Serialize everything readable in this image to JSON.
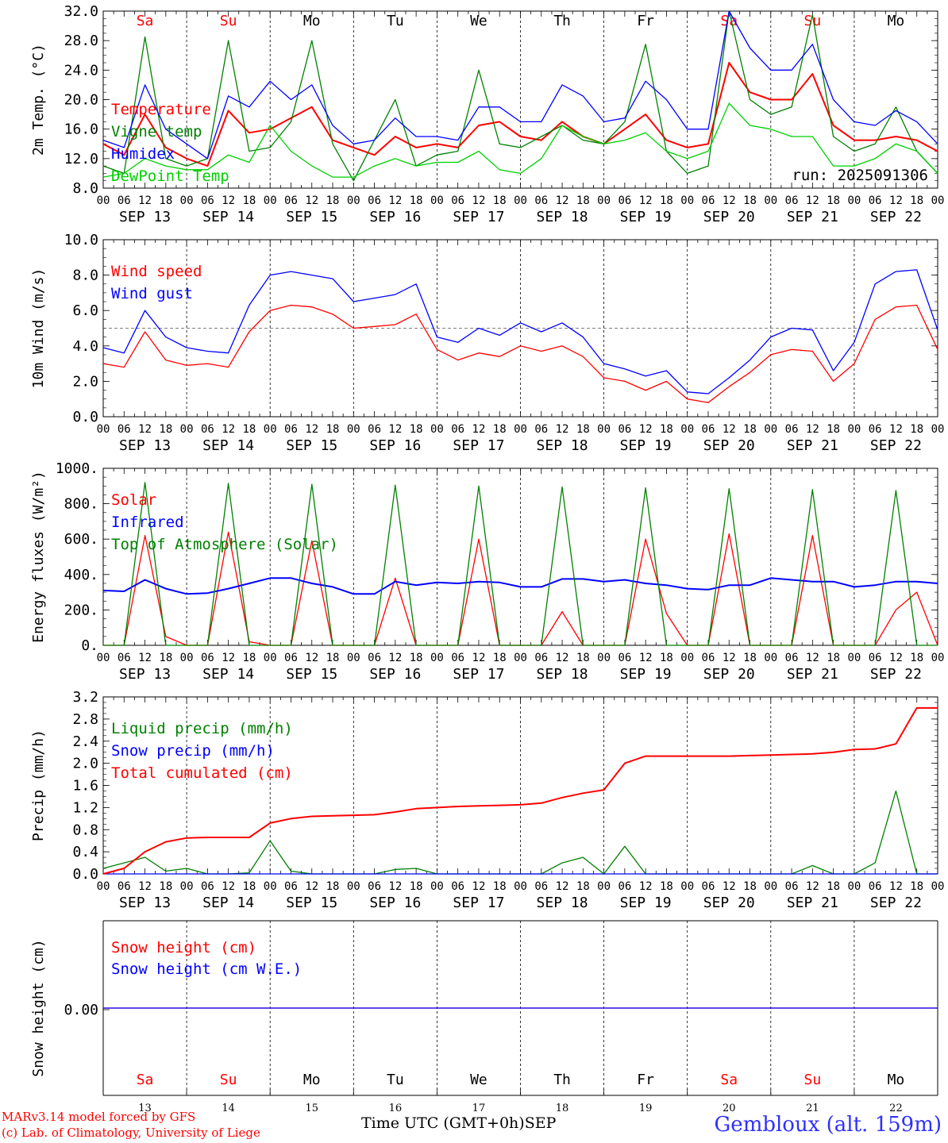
{
  "chart_data": [
    {
      "type": "line",
      "ylabel": "2m Temp. (°C)",
      "ylim": [
        8,
        32
      ],
      "yticks": [
        "8.0",
        "12.0",
        "16.0",
        "20.0",
        "24.0",
        "28.0",
        "32.0"
      ],
      "run_label": "run: 2025091306",
      "x_hours": [
        0,
        6,
        12,
        18,
        24,
        30,
        36,
        42,
        48,
        54,
        60,
        66,
        72,
        78,
        84,
        90,
        96,
        102,
        108,
        114,
        120,
        126,
        132,
        138,
        144,
        150,
        156,
        162,
        168,
        174,
        180,
        186,
        192,
        198,
        204,
        210,
        216,
        222,
        228,
        234,
        240
      ],
      "series": [
        {
          "name": "Temperature",
          "color": "#ff0000",
          "values": [
            14,
            12.5,
            18,
            13.5,
            12,
            11,
            18.5,
            15.5,
            16,
            17.5,
            19,
            14.5,
            13.5,
            12.5,
            15,
            13.5,
            14,
            13.5,
            16.5,
            17,
            15,
            14.5,
            17,
            15,
            14,
            16,
            18,
            14.5,
            13.5,
            14,
            25,
            21,
            20,
            20,
            23.5,
            16.5,
            14.5,
            14.5,
            15,
            14.5,
            13
          ]
        },
        {
          "name": "Vigne temp",
          "color": "#008000",
          "values": [
            11,
            10,
            28.5,
            12,
            11,
            12,
            28,
            13,
            13.5,
            17,
            28,
            14,
            9,
            14.5,
            20,
            11,
            12.5,
            13,
            24,
            14,
            13.5,
            15,
            16.5,
            14.5,
            14,
            17,
            27.5,
            13,
            10,
            11,
            32,
            20,
            18,
            19,
            31.5,
            15,
            13,
            14,
            19,
            13,
            10
          ]
        },
        {
          "name": "Humidex",
          "color": "#0000ff",
          "values": [
            14.5,
            13.5,
            22,
            16,
            14,
            12,
            20.5,
            19,
            22.5,
            20,
            22,
            16.5,
            14,
            14.5,
            17.5,
            15,
            15,
            14.5,
            19,
            19,
            17,
            17,
            22,
            20.5,
            17,
            17.5,
            22.5,
            20,
            16,
            16,
            32,
            27,
            24,
            24,
            27.5,
            20,
            17,
            16.5,
            18.5,
            17,
            14
          ]
        },
        {
          "name": "DewPoint Temp",
          "color": "#00d000",
          "values": [
            9.5,
            10,
            12,
            11,
            10.5,
            10.5,
            12.5,
            11.5,
            16.5,
            13,
            11,
            9.5,
            9.5,
            11,
            12,
            11,
            11.5,
            11.5,
            13,
            10.5,
            10,
            12,
            16.5,
            15,
            14,
            14.5,
            15.5,
            13,
            12,
            13,
            19.5,
            16.5,
            16,
            15,
            15,
            11,
            11,
            12,
            14,
            13,
            10
          ]
        }
      ]
    },
    {
      "type": "line",
      "ylabel": "10m Wind (m/s)",
      "ylim": [
        0,
        10
      ],
      "yticks": [
        "0.0",
        "2.0",
        "4.0",
        "6.0",
        "8.0",
        "10.0"
      ],
      "reference_line": 5.0,
      "x_hours": [
        0,
        6,
        12,
        18,
        24,
        30,
        36,
        42,
        48,
        54,
        60,
        66,
        72,
        78,
        84,
        90,
        96,
        102,
        108,
        114,
        120,
        126,
        132,
        138,
        144,
        150,
        156,
        162,
        168,
        174,
        180,
        186,
        192,
        198,
        204,
        210,
        216,
        222,
        228,
        234,
        240
      ],
      "series": [
        {
          "name": "Wind speed",
          "color": "#ff0000",
          "values": [
            3,
            2.8,
            4.8,
            3.2,
            2.9,
            3,
            2.8,
            4.8,
            6,
            6.3,
            6.2,
            5.8,
            5,
            5.1,
            5.2,
            5.8,
            3.8,
            3.2,
            3.6,
            3.4,
            4,
            3.7,
            4,
            3.4,
            2.2,
            2,
            1.5,
            2,
            1,
            0.8,
            1.7,
            2.5,
            3.5,
            3.8,
            3.7,
            2,
            3,
            5.5,
            6.2,
            6.3,
            3.8
          ]
        },
        {
          "name": "Wind gust",
          "color": "#0000ff",
          "values": [
            3.9,
            3.6,
            6,
            4.5,
            3.9,
            3.7,
            3.6,
            6.3,
            8,
            8.2,
            8,
            7.8,
            6.5,
            6.7,
            6.9,
            7.5,
            4.5,
            4.2,
            5,
            4.6,
            5.3,
            4.8,
            5.3,
            4.5,
            3,
            2.7,
            2.3,
            2.6,
            1.4,
            1.3,
            2.2,
            3.2,
            4.5,
            5,
            4.9,
            2.6,
            4.2,
            7.5,
            8.2,
            8.3,
            4.9
          ]
        }
      ]
    },
    {
      "type": "line",
      "ylabel": "Energy fluxes (W/m²)",
      "ylim": [
        0,
        1000
      ],
      "yticks": [
        "0.",
        "200.",
        "400.",
        "600.",
        "800.",
        "1000."
      ],
      "x_hours": [
        0,
        6,
        12,
        18,
        24,
        30,
        36,
        42,
        48,
        54,
        60,
        66,
        72,
        78,
        84,
        90,
        96,
        102,
        108,
        114,
        120,
        126,
        132,
        138,
        144,
        150,
        156,
        162,
        168,
        174,
        180,
        186,
        192,
        198,
        204,
        210,
        216,
        222,
        228,
        234,
        240
      ],
      "series": [
        {
          "name": "Solar",
          "color": "#ff0000",
          "values": [
            0,
            0,
            620,
            50,
            0,
            0,
            640,
            20,
            0,
            0,
            590,
            0,
            0,
            0,
            380,
            0,
            0,
            0,
            600,
            0,
            0,
            0,
            190,
            0,
            0,
            0,
            600,
            180,
            0,
            0,
            630,
            0,
            0,
            0,
            620,
            0,
            0,
            0,
            200,
            300,
            0
          ]
        },
        {
          "name": "Infrared",
          "color": "#0000ff",
          "values": [
            310,
            305,
            370,
            320,
            290,
            295,
            320,
            350,
            380,
            380,
            350,
            330,
            290,
            290,
            360,
            340,
            355,
            350,
            360,
            355,
            330,
            330,
            375,
            375,
            360,
            370,
            350,
            340,
            320,
            315,
            340,
            340,
            380,
            370,
            360,
            360,
            330,
            340,
            360,
            360,
            350
          ]
        },
        {
          "name": "Top of Atmosphere (Solar)",
          "color": "#008000",
          "values": [
            0,
            0,
            920,
            0,
            0,
            0,
            915,
            0,
            0,
            0,
            910,
            0,
            0,
            0,
            905,
            0,
            0,
            0,
            900,
            0,
            0,
            0,
            895,
            0,
            0,
            0,
            890,
            0,
            0,
            0,
            885,
            0,
            0,
            0,
            880,
            0,
            0,
            0,
            875,
            0,
            0
          ]
        }
      ]
    },
    {
      "type": "line",
      "ylabel": "Precip (mm/h)",
      "ylim": [
        0,
        3.2
      ],
      "yticks": [
        "0.0",
        "0.4",
        "0.8",
        "1.2",
        "1.6",
        "2.0",
        "2.4",
        "2.8",
        "3.2"
      ],
      "x_hours": [
        0,
        6,
        12,
        18,
        24,
        30,
        36,
        42,
        48,
        54,
        60,
        66,
        72,
        78,
        84,
        90,
        96,
        102,
        108,
        114,
        120,
        126,
        132,
        138,
        144,
        150,
        156,
        162,
        168,
        174,
        180,
        186,
        192,
        198,
        204,
        210,
        216,
        222,
        228,
        234,
        240
      ],
      "series": [
        {
          "name": "Liquid precip (mm/h)",
          "color": "#008000",
          "values": [
            0.1,
            0.2,
            0.3,
            0.05,
            0.1,
            0,
            0,
            0.02,
            0.6,
            0.05,
            0,
            0,
            0,
            0,
            0.08,
            0.1,
            0,
            0,
            0,
            0,
            0,
            0,
            0.2,
            0.3,
            0,
            0.5,
            0,
            0,
            0,
            0,
            0,
            0,
            0,
            0,
            0.15,
            0,
            0,
            0.2,
            1.5,
            0,
            0
          ]
        },
        {
          "name": "Snow precip (mm/h)",
          "color": "#0000ff",
          "values": [
            0,
            0,
            0,
            0,
            0,
            0,
            0,
            0,
            0,
            0,
            0,
            0,
            0,
            0,
            0,
            0,
            0,
            0,
            0,
            0,
            0,
            0,
            0,
            0,
            0,
            0,
            0,
            0,
            0,
            0,
            0,
            0,
            0,
            0,
            0,
            0,
            0,
            0,
            0,
            0,
            0
          ]
        },
        {
          "name": "Total cumulated (cm)",
          "color": "#ff0000",
          "values": [
            0,
            0.1,
            0.4,
            0.58,
            0.65,
            0.66,
            0.66,
            0.66,
            0.92,
            1.0,
            1.04,
            1.05,
            1.06,
            1.07,
            1.12,
            1.18,
            1.2,
            1.22,
            1.23,
            1.24,
            1.25,
            1.28,
            1.38,
            1.46,
            1.52,
            2.0,
            2.13,
            2.13,
            2.13,
            2.13,
            2.13,
            2.14,
            2.15,
            2.16,
            2.17,
            2.2,
            2.25,
            2.26,
            2.35,
            3.0,
            3.0
          ]
        }
      ]
    },
    {
      "type": "line",
      "ylabel": "Snow height (cm)",
      "yticks": [
        "0.00"
      ],
      "x_hours": [
        0,
        240
      ],
      "series": [
        {
          "name": "Snow height (cm)",
          "color": "#ff0000",
          "values": [
            0,
            0
          ]
        },
        {
          "name": "Snow height (cm W.E.)",
          "color": "#0000ff",
          "values": [
            0,
            0
          ]
        }
      ]
    }
  ],
  "x_hour_labels": [
    "00",
    "06",
    "12",
    "18"
  ],
  "date_labels": [
    "SEP 13",
    "SEP 14",
    "SEP 15",
    "SEP 16",
    "SEP 17",
    "SEP 18",
    "SEP 19",
    "SEP 20",
    "SEP 21",
    "SEP 22"
  ],
  "day_names": [
    "Sa",
    "Su",
    "Mo",
    "Tu",
    "We",
    "Th",
    "Fr",
    "Sa",
    "Su",
    "Mo"
  ],
  "weekend_color": "#ff0000",
  "bottom_day_numbers": [
    "13",
    "14",
    "15",
    "16",
    "17",
    "18",
    "19",
    "20",
    "21",
    "22"
  ],
  "x_title": "Time UTC (GMT+0h)",
  "x_month": "SEP",
  "footer_line1": "MARv3.14 model forced by GFS",
  "footer_line2": "(c) Lab. of Climatology, University of Liege",
  "location": "Gembloux (alt. 159m)"
}
